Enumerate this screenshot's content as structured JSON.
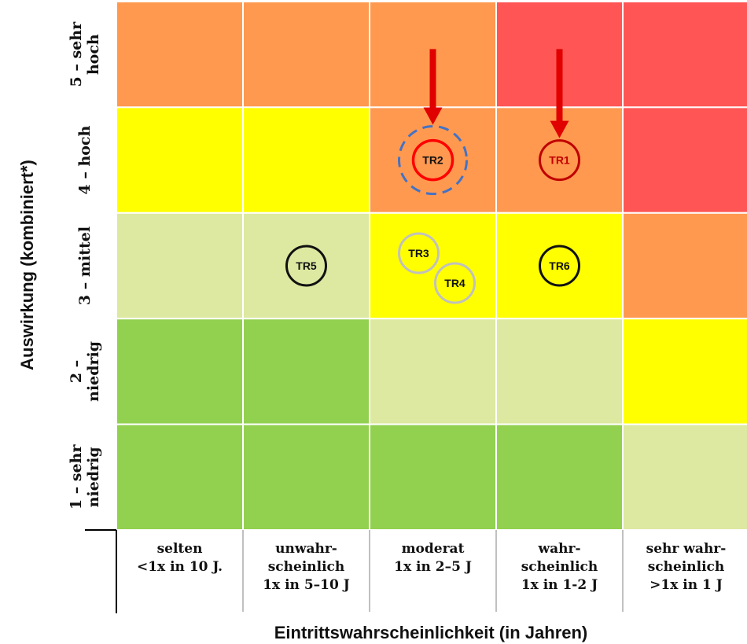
{
  "colors": {
    "green": "#92d050",
    "light_green": "#dde8a1",
    "yellow": "#ffff00",
    "orange": "#ff9950",
    "red": "#ff5555",
    "arrow": "#e00000",
    "highlight_ring": "#4472c4"
  },
  "matrix": {
    "x_title": "Eintrittswahrscheinlichkeit (in Jahren)",
    "y_title": "Auswirkung (kombiniert*)",
    "rows": [
      {
        "lines": [
          "5 – sehr",
          "hoch"
        ],
        "cells": [
          "orange",
          "orange",
          "orange",
          "red",
          "red"
        ]
      },
      {
        "lines": [
          "4 – hoch"
        ],
        "cells": [
          "yellow",
          "yellow",
          "orange",
          "orange",
          "red"
        ]
      },
      {
        "lines": [
          "3 – mittel"
        ],
        "cells": [
          "light_green",
          "light_green",
          "yellow",
          "yellow",
          "orange"
        ]
      },
      {
        "lines": [
          "2 –",
          "niedrig"
        ],
        "cells": [
          "green",
          "green",
          "light_green",
          "light_green",
          "yellow"
        ]
      },
      {
        "lines": [
          "1 – sehr",
          "niedrig"
        ],
        "cells": [
          "green",
          "green",
          "green",
          "green",
          "light_green"
        ]
      }
    ],
    "columns": [
      {
        "lines": [
          "selten",
          "<1x in 10 J."
        ]
      },
      {
        "lines": [
          "unwahr-",
          "scheinlich",
          "1x in 5–10 J"
        ]
      },
      {
        "lines": [
          "moderat",
          "1x in 2–5 J"
        ]
      },
      {
        "lines": [
          "wahr-",
          "scheinlich",
          "1x in 1-2 J"
        ]
      },
      {
        "lines": [
          "sehr wahr-",
          "scheinlich",
          ">1x in 1 J"
        ]
      }
    ]
  },
  "markers": [
    {
      "label": "TR1",
      "row": 1,
      "col": 3,
      "dx": 0,
      "dy": 0,
      "stroke": "#c00000",
      "text_color": "#c00000",
      "highlight": false,
      "arrow": true
    },
    {
      "label": "TR2",
      "row": 1,
      "col": 2,
      "dx": 0,
      "dy": 0,
      "stroke": "#ff0000",
      "text_color": "#111111",
      "highlight": true,
      "arrow": true
    },
    {
      "label": "TR3",
      "row": 2,
      "col": 2,
      "dx": -18,
      "dy": -16,
      "stroke": "#c0c0c0",
      "text_color": "#111111",
      "highlight": false,
      "arrow": false
    },
    {
      "label": "TR4",
      "row": 2,
      "col": 2,
      "dx": 28,
      "dy": 22,
      "stroke": "#c0c0c0",
      "text_color": "#111111",
      "highlight": false,
      "arrow": false
    },
    {
      "label": "TR5",
      "row": 2,
      "col": 1,
      "dx": 0,
      "dy": 0,
      "stroke": "#111111",
      "text_color": "#111111",
      "highlight": false,
      "arrow": false
    },
    {
      "label": "TR6",
      "row": 2,
      "col": 3,
      "dx": 0,
      "dy": 0,
      "stroke": "#111111",
      "text_color": "#111111",
      "highlight": false,
      "arrow": false
    }
  ]
}
